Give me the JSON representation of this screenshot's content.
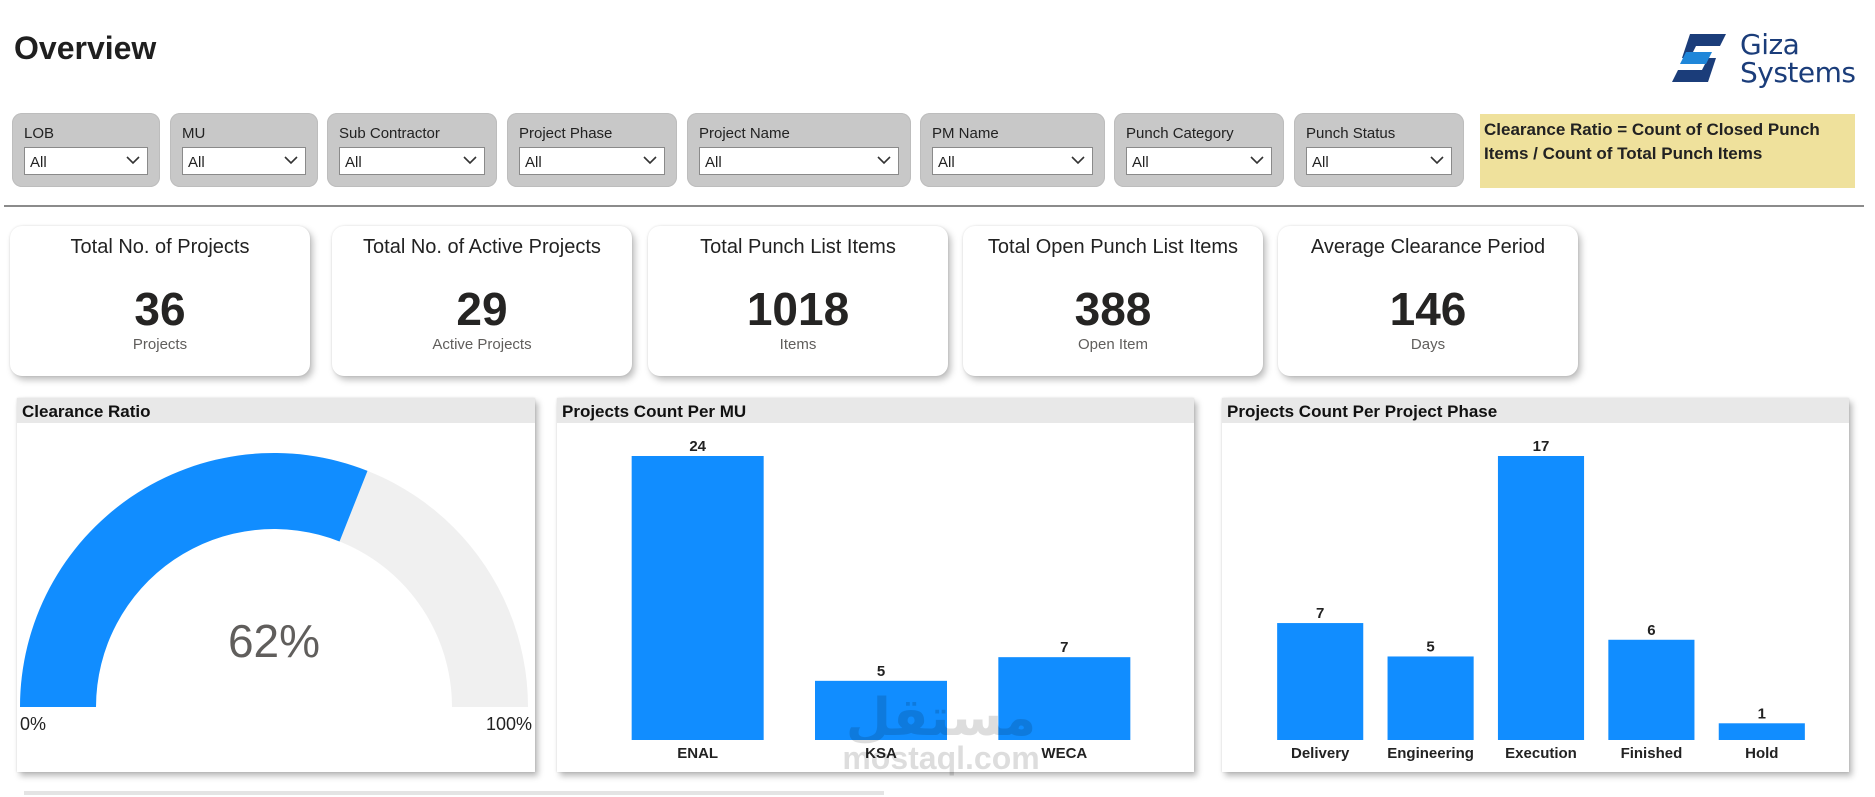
{
  "header": {
    "title": "Overview",
    "logo_line1": "Giza",
    "logo_line2": "Systems",
    "logo_color": "#1b3d7a",
    "logo_accent": "#1f86d9"
  },
  "filters": [
    {
      "label": "LOB",
      "value": "All"
    },
    {
      "label": "MU",
      "value": "All"
    },
    {
      "label": "Sub Contractor",
      "value": "All"
    },
    {
      "label": "Project Phase",
      "value": "All"
    },
    {
      "label": "Project Name",
      "value": "All"
    },
    {
      "label": "PM Name",
      "value": "All"
    },
    {
      "label": "Punch Category",
      "value": "All"
    },
    {
      "label": "Punch Status",
      "value": "All"
    }
  ],
  "note": {
    "text": "Clearance Ratio = Count of Closed Punch Items / Count of Total Punch Items",
    "background": "#efe19c"
  },
  "kpis": [
    {
      "title": "Total No. of Projects",
      "value": "36",
      "unit": "Projects"
    },
    {
      "title": "Total No. of Active Projects",
      "value": "29",
      "unit": "Active Projects"
    },
    {
      "title": "Total Punch List Items",
      "value": "1018",
      "unit": "Items"
    },
    {
      "title": "Total Open Punch List Items",
      "value": "388",
      "unit": "Open Item"
    },
    {
      "title": "Average Clearance Period",
      "value": "146",
      "unit": "Days"
    }
  ],
  "colors": {
    "accent": "#118dff",
    "gauge_track": "#f0f0f0"
  },
  "chart_data": [
    {
      "type": "gauge",
      "title": "Clearance Ratio",
      "value": 0.62,
      "value_label": "62%",
      "min_label": "0%",
      "max_label": "100%"
    },
    {
      "type": "bar",
      "title": "Projects Count Per MU",
      "categories": [
        "ENAL",
        "KSA",
        "WECA"
      ],
      "values": [
        24,
        5,
        7
      ],
      "ylim": [
        0,
        24
      ]
    },
    {
      "type": "bar",
      "title": "Projects Count Per Project Phase",
      "categories": [
        "Delivery",
        "Engineering",
        "Execution",
        "Finished",
        "Hold"
      ],
      "values": [
        7,
        5,
        17,
        6,
        1
      ],
      "ylim": [
        0,
        17
      ]
    }
  ],
  "watermark": {
    "line1": "مستقل",
    "line2": "mostaql.com"
  }
}
